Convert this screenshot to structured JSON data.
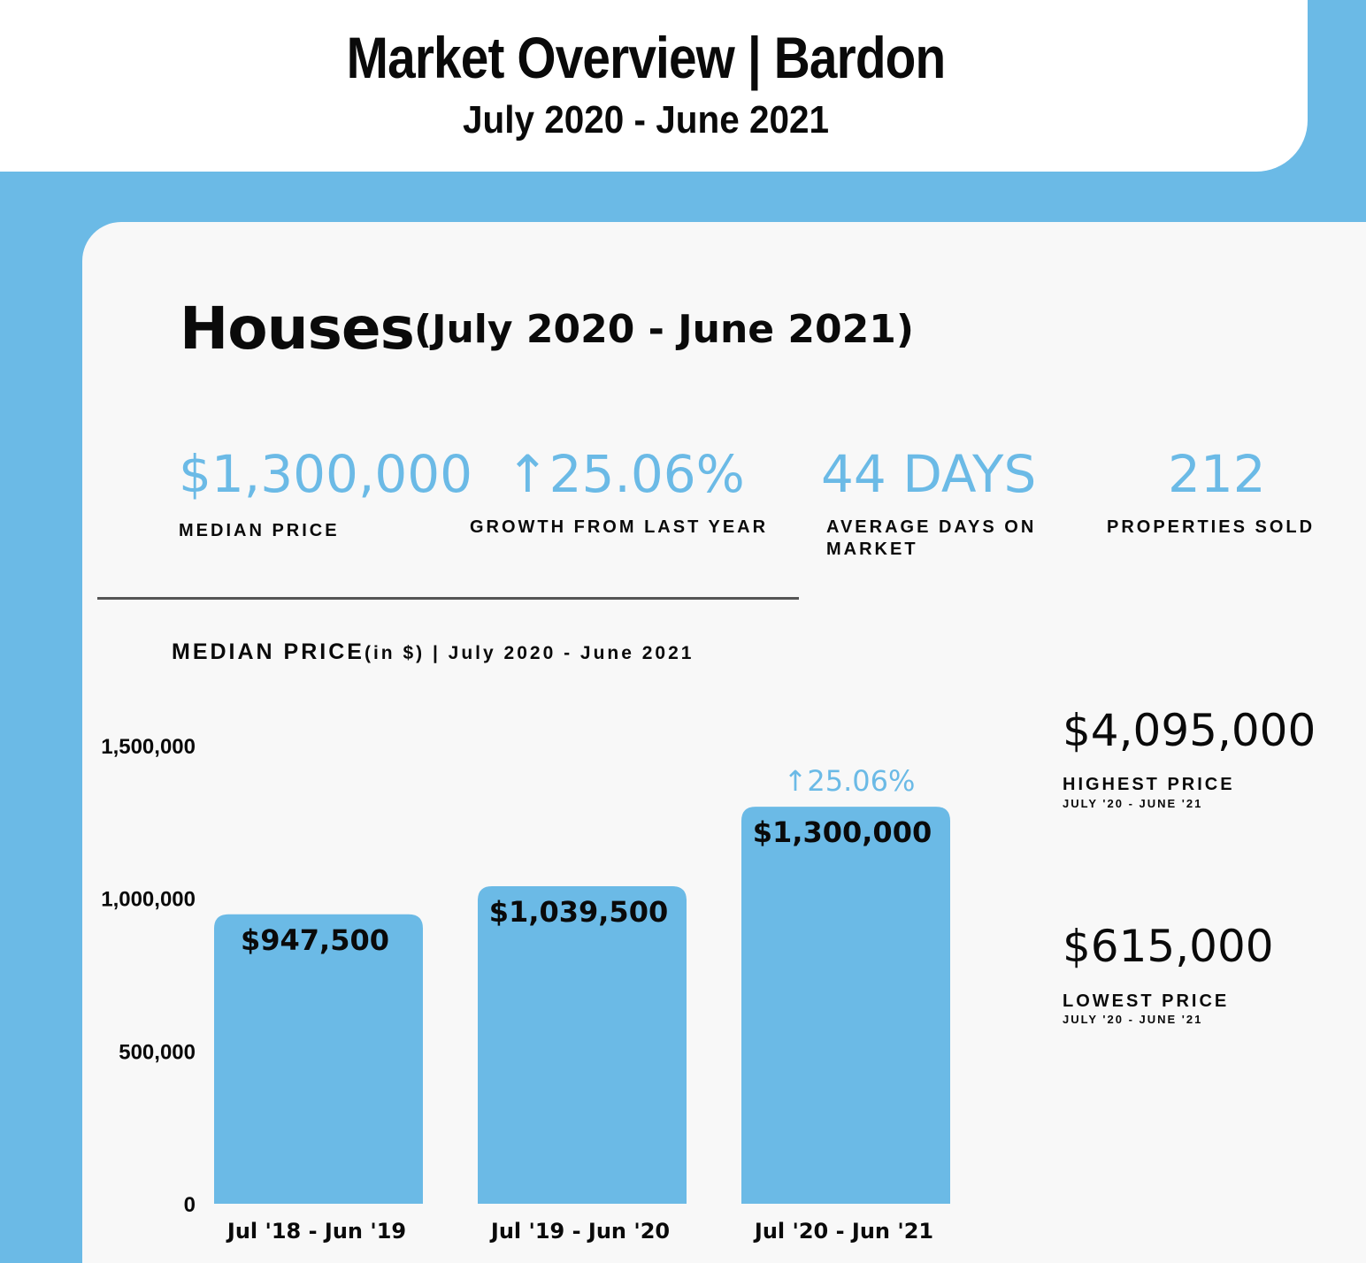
{
  "header": {
    "title": "Market Overview | Bardon",
    "subtitle": "July 2020 - June 2021"
  },
  "section": {
    "title": "Houses",
    "period": "(July 2020 - June 2021)"
  },
  "stats": [
    {
      "value": "$1,300,000",
      "label": "MEDIAN PRICE"
    },
    {
      "value": "↑25.06%",
      "label": "GROWTH FROM LAST YEAR"
    },
    {
      "value": "44 DAYS",
      "label": "AVERAGE DAYS ON MARKET"
    },
    {
      "value": "212",
      "label": "PROPERTIES SOLD"
    }
  ],
  "chart_heading": {
    "main": "MEDIAN PRICE",
    "rest": "(in $) | July 2020 - June 2021"
  },
  "side": {
    "highest_value": "$4,095,000",
    "highest_label": "HIGHEST PRICE",
    "highest_sub": "JULY '20 - JUNE '21",
    "lowest_value": "$615,000",
    "lowest_label": "LOWEST PRICE",
    "lowest_sub": "JULY '20 - JUNE '21"
  },
  "colors": {
    "accent": "#6bbae6",
    "text": "#0a0a0a",
    "panel": "#f8f8f8"
  },
  "chart_data": {
    "type": "bar",
    "categories": [
      "Jul '18 - Jun '19",
      "Jul '19 - Jun '20",
      "Jul '20 - Jun '21"
    ],
    "values": [
      947500,
      1039500,
      1300000
    ],
    "data_labels": [
      "$947,500",
      "$1,039,500",
      "$1,300,000"
    ],
    "ylim": [
      0,
      1500000
    ],
    "yticks": [
      0,
      500000,
      1000000,
      1500000
    ],
    "ytick_labels": [
      "0",
      "500,000",
      "1,000,000",
      "1,500,000"
    ],
    "annotation": {
      "category_index": 2,
      "text": "↑25.06%"
    },
    "grid": false
  }
}
